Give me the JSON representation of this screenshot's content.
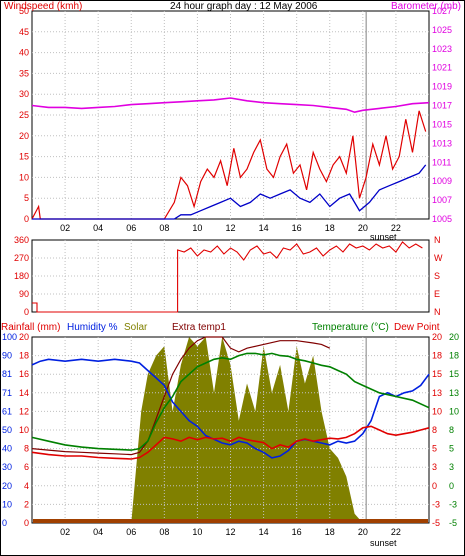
{
  "header": {
    "title": "24 hour graph day : 12 May 2006"
  },
  "colors": {
    "wind_speed": "#e00000",
    "wind_avg": "#0000c8",
    "barometer": "#e000e0",
    "direction": "#e00000",
    "humidity": "#0020e0",
    "temperature": "#008000",
    "dewpoint": "#e00000",
    "solar": "#808000",
    "extra_temp": "#800000",
    "rainfall": "#a04000",
    "grid": "#c0c0c0",
    "frame": "#000000"
  },
  "chart_data": [
    {
      "type": "line",
      "ylabel_left": "Windspeed (kmh)",
      "ylabel_right": "Barometer (mb)",
      "x_ticks": [
        "02",
        "04",
        "06",
        "08",
        "10",
        "12",
        "14",
        "16",
        "18",
        "20",
        "22"
      ],
      "xlim": [
        0,
        24
      ],
      "ylim_left": [
        0,
        50
      ],
      "yticks_left": [
        "0",
        "5",
        "10",
        "15",
        "20",
        "25",
        "30",
        "35",
        "40",
        "45",
        "50"
      ],
      "ylim_right": [
        1005,
        1027
      ],
      "yticks_right": [
        "1005",
        "1007",
        "1009",
        "1011",
        "1013",
        "1015",
        "1017",
        "1019",
        "1021",
        "1023",
        "1025",
        "1027"
      ],
      "annotation": "sunset",
      "sunset_hour": 20.2,
      "series": [
        {
          "role": "wind_gust",
          "x": [
            0,
            0.4,
            0.5,
            0.6,
            1,
            4,
            8,
            8.6,
            9,
            9.4,
            9.8,
            10.2,
            10.6,
            11,
            11.4,
            11.8,
            12.2,
            12.6,
            13,
            13.4,
            13.8,
            14.2,
            14.6,
            15,
            15.4,
            15.8,
            16.2,
            16.6,
            17,
            17.4,
            17.8,
            18.2,
            18.6,
            19,
            19.4,
            19.8,
            20.2,
            20.6,
            21,
            21.4,
            21.8,
            22.2,
            22.6,
            23,
            23.4,
            23.8
          ],
          "y": [
            0,
            3,
            0,
            0,
            0,
            0,
            0,
            4,
            10,
            8,
            3,
            9,
            12,
            10,
            14,
            8,
            17,
            10,
            12,
            16,
            19,
            12,
            10,
            15,
            18,
            11,
            13,
            7,
            16,
            12,
            9,
            13,
            15,
            11,
            20,
            5,
            10,
            18,
            13,
            20,
            12,
            15,
            24,
            16,
            26,
            21
          ]
        },
        {
          "role": "wind_avg",
          "x": [
            0,
            1,
            4,
            8,
            8.6,
            9,
            9.6,
            10.2,
            10.8,
            11.4,
            12,
            12.6,
            13.2,
            13.8,
            14.4,
            15,
            15.6,
            16.2,
            16.8,
            17.4,
            18,
            18.6,
            19.2,
            19.8,
            20.4,
            21,
            21.6,
            22.2,
            22.8,
            23.4,
            23.8
          ],
          "y": [
            0,
            0,
            0,
            0,
            0,
            1,
            1,
            2,
            3,
            4,
            5,
            3,
            4,
            6,
            5,
            6,
            7,
            5,
            4,
            6,
            3,
            5,
            6,
            2,
            4,
            7,
            8,
            9,
            10,
            11,
            13
          ]
        },
        {
          "role": "barometer",
          "x": [
            0,
            1,
            2,
            3,
            4,
            5,
            6,
            7,
            8,
            9,
            10,
            11,
            12,
            13,
            14,
            15,
            16,
            17,
            18,
            19,
            19.5,
            20,
            21,
            22,
            23,
            24
          ],
          "y": [
            1017.0,
            1016.8,
            1016.8,
            1016.7,
            1016.8,
            1016.9,
            1017.1,
            1017.2,
            1017.3,
            1017.4,
            1017.5,
            1017.6,
            1017.8,
            1017.5,
            1017.3,
            1017.2,
            1017.1,
            1017.0,
            1016.8,
            1016.6,
            1016.3,
            1016.5,
            1016.7,
            1016.9,
            1017.2,
            1017.3
          ]
        }
      ]
    },
    {
      "type": "line",
      "ylim": [
        0,
        360
      ],
      "yticks": [
        "0",
        "90",
        "180",
        "270",
        "360"
      ],
      "right_labels": [
        "N",
        "W",
        "S",
        "E",
        "N"
      ],
      "xlim": [
        0,
        24
      ],
      "series": [
        {
          "role": "wind_direction",
          "x": [
            0,
            0.3,
            0.3,
            8.8,
            8.8,
            9.2,
            9.6,
            10,
            10.4,
            10.8,
            11.2,
            11.6,
            12,
            12.4,
            12.8,
            13.2,
            13.6,
            14,
            14.4,
            14.8,
            15.2,
            15.6,
            16,
            16.4,
            16.8,
            17.2,
            17.6,
            18,
            18.4,
            18.8,
            19.2,
            19.6,
            20,
            20.4,
            20.8,
            21.2,
            21.6,
            22,
            22.4,
            22.8,
            23.2,
            23.6
          ],
          "y": [
            45,
            45,
            0,
            0,
            310,
            300,
            320,
            280,
            310,
            300,
            330,
            290,
            320,
            300,
            260,
            310,
            330,
            290,
            300,
            270,
            320,
            310,
            340,
            290,
            300,
            320,
            280,
            310,
            330,
            300,
            340,
            320,
            330,
            310,
            340,
            320,
            330,
            300,
            350,
            320,
            340,
            320
          ]
        }
      ]
    },
    {
      "type": "line",
      "ylabel_left_1": "Rainfall (mm)",
      "ylabel_left_2": "Humidity %",
      "series_labels": [
        "Solar",
        "Extra temp1"
      ],
      "ylabel_right_1": "Temperature (°C)",
      "ylabel_right_2": "Dew Point",
      "xlim": [
        0,
        24
      ],
      "yticks_rain": [
        "0",
        "2",
        "4",
        "6",
        "8",
        "10",
        "12",
        "14",
        "16",
        "18",
        "20"
      ],
      "yticks_humidity": [
        "0",
        "10",
        "20",
        "30",
        "40",
        "50",
        "61",
        "71",
        "81",
        "90",
        "100"
      ],
      "ylim_humidity": [
        0,
        100
      ],
      "yticks_temp_a": [
        "-5",
        "-3",
        "0",
        "3",
        "5",
        "8",
        "10",
        "13",
        "15",
        "18",
        "20"
      ],
      "yticks_temp_b": [
        "-5",
        "-3",
        "0",
        "3",
        "5",
        "8",
        "10",
        "13",
        "15",
        "18",
        "20"
      ],
      "ylim_temp": [
        -5,
        20
      ],
      "annotation": "sunset",
      "sunset_hour": 20.2,
      "series": [
        {
          "role": "solar_pct",
          "x": [
            0,
            6.0,
            6.1,
            6.6,
            7.0,
            7.5,
            8.0,
            8.5,
            9.0,
            9.5,
            10.0,
            10.5,
            11.0,
            11.5,
            12.0,
            12.5,
            13.0,
            13.5,
            14.0,
            14.5,
            15.0,
            15.5,
            16.0,
            16.5,
            17.0,
            17.5,
            18.0,
            18.5,
            19.0,
            19.5,
            20.0,
            24
          ],
          "y": [
            0,
            0,
            10,
            60,
            80,
            90,
            95,
            60,
            85,
            100,
            95,
            100,
            70,
            100,
            85,
            55,
            75,
            60,
            95,
            70,
            85,
            60,
            95,
            75,
            90,
            60,
            40,
            35,
            25,
            5,
            0,
            0
          ]
        },
        {
          "role": "humidity",
          "x": [
            0,
            0.5,
            1,
            2,
            3,
            4,
            5,
            6,
            6.5,
            7,
            7.5,
            8,
            8.5,
            9,
            9.5,
            10,
            10.5,
            11,
            11.5,
            12,
            12.5,
            13,
            13.5,
            14,
            14.5,
            15,
            15.5,
            16,
            16.5,
            17,
            17.5,
            18,
            18.5,
            19,
            19.5,
            20,
            20.5,
            21,
            21.5,
            22,
            22.5,
            23,
            23.5,
            24
          ],
          "y": [
            85,
            87,
            88,
            87,
            88,
            87,
            88,
            87,
            86,
            82,
            78,
            74,
            65,
            60,
            55,
            52,
            47,
            45,
            43,
            42,
            44,
            43,
            40,
            38,
            35,
            36,
            39,
            44,
            45,
            44,
            43,
            42,
            44,
            43,
            44,
            48,
            55,
            68,
            70,
            68,
            70,
            71,
            74,
            80
          ]
        },
        {
          "role": "temperature",
          "x": [
            0,
            1,
            2,
            3,
            4,
            5,
            6,
            6.5,
            7,
            7.5,
            8,
            8.5,
            9,
            9.5,
            10,
            10.5,
            11,
            11.5,
            12,
            12.5,
            13,
            13.5,
            14,
            14.5,
            15,
            15.5,
            16,
            16.5,
            17,
            17.5,
            18,
            18.5,
            19,
            19.5,
            20,
            20.5,
            21,
            22,
            23,
            24
          ],
          "y": [
            6.5,
            6.0,
            5.5,
            5.2,
            5.0,
            4.9,
            4.8,
            5.0,
            6.0,
            8.5,
            10.5,
            12.0,
            14.0,
            15.0,
            16.0,
            16.5,
            17.0,
            17.2,
            17.0,
            17.5,
            17.8,
            17.8,
            17.6,
            17.8,
            17.5,
            17.4,
            17.0,
            16.8,
            16.5,
            16.2,
            16.0,
            15.5,
            15.0,
            14.0,
            13.5,
            13.0,
            12.5,
            12.0,
            11.5,
            10.5
          ]
        },
        {
          "role": "dewpoint",
          "x": [
            0,
            1,
            2,
            3,
            4,
            5,
            6,
            6.5,
            7,
            7.5,
            8,
            8.5,
            9,
            9.5,
            10,
            10.5,
            11,
            11.5,
            12,
            12.5,
            13,
            13.5,
            14,
            14.5,
            15,
            15.5,
            16,
            16.5,
            17,
            17.5,
            18,
            18.5,
            19,
            19.5,
            20,
            20.5,
            21,
            21.5,
            22,
            22.5,
            23,
            23.5,
            24
          ],
          "y": [
            4.5,
            4.2,
            4.0,
            4.0,
            3.8,
            3.7,
            3.6,
            3.8,
            4.5,
            5.5,
            6.5,
            6.3,
            6.0,
            6.5,
            6.2,
            6.5,
            6.3,
            6.4,
            6.0,
            6.5,
            6.2,
            6.0,
            5.8,
            5.0,
            5.5,
            5.2,
            6.0,
            6.3,
            6.0,
            6.2,
            6.4,
            6.3,
            6.5,
            7.0,
            7.8,
            8.0,
            7.5,
            7.0,
            6.8,
            7.0,
            7.2,
            7.5,
            7.8
          ]
        },
        {
          "role": "extra_temp",
          "x": [
            0,
            1,
            2,
            3,
            4,
            5,
            6,
            6.5,
            7,
            7.5,
            8,
            8.5,
            9,
            9.5,
            10,
            10.5,
            11,
            11.5,
            12,
            12.5,
            13,
            14,
            15,
            16,
            17,
            17.5,
            18,
            18.5,
            19,
            19.5,
            20,
            24
          ],
          "y": [
            5.0,
            4.8,
            4.6,
            4.5,
            4.4,
            4.3,
            4.2,
            4.5,
            6.0,
            9.0,
            12.0,
            15.0,
            17.0,
            18.5,
            19.5,
            20.0,
            20.0,
            20.0,
            18.5,
            18.0,
            18.5,
            19.0,
            19.5,
            19.5,
            19.2,
            19.0,
            18.5,
            null,
            null,
            null,
            null,
            null
          ]
        },
        {
          "role": "rainfall",
          "x": [
            0,
            24
          ],
          "y": [
            0,
            0
          ]
        }
      ]
    }
  ]
}
